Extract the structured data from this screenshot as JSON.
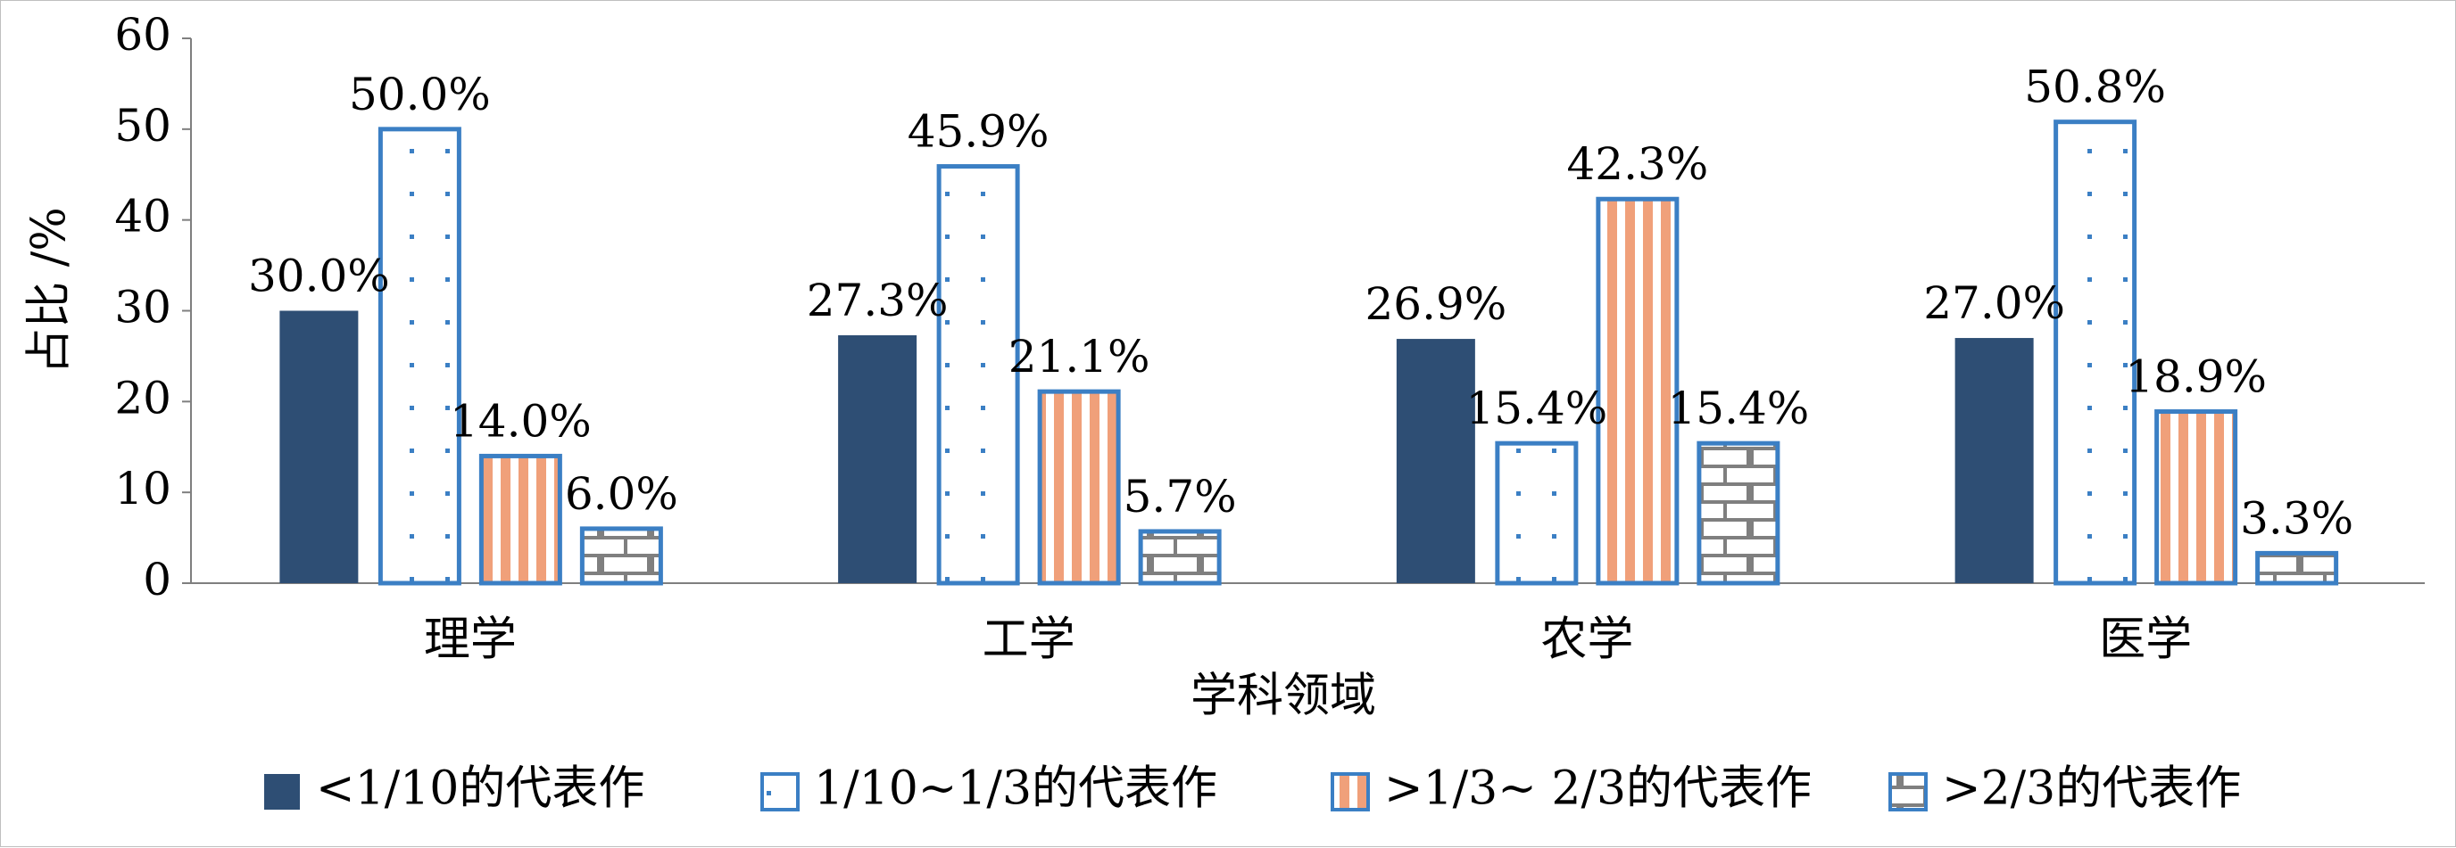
{
  "chart_data": {
    "type": "bar",
    "categories": [
      "理学",
      "工学",
      "农学",
      "医学"
    ],
    "series": [
      {
        "name": "<1/10的代表作",
        "values": [
          30.0,
          27.3,
          26.9,
          27.0
        ],
        "labels": [
          "30.0%",
          "27.3%",
          "26.9%",
          "27.0%"
        ],
        "pattern": "solid",
        "color": "#2e4e74"
      },
      {
        "name": "1/10~1/3的代表作",
        "values": [
          50.0,
          45.9,
          15.4,
          50.8
        ],
        "labels": [
          "50.0%",
          "45.9%",
          "15.4%",
          "50.8%"
        ],
        "pattern": "dots",
        "color": "#3b7fc4"
      },
      {
        "name": ">1/3~ 2/3的代表作",
        "values": [
          14.0,
          21.1,
          42.3,
          18.9
        ],
        "labels": [
          "14.0%",
          "21.1%",
          "42.3%",
          "18.9%"
        ],
        "pattern": "stripes",
        "color": "#f0a07a"
      },
      {
        "name": ">2/3的代表作",
        "values": [
          6.0,
          5.7,
          15.4,
          3.3
        ],
        "labels": [
          "6.0%",
          "5.7%",
          "15.4%",
          "3.3%"
        ],
        "pattern": "bricks",
        "color": "#7f7f7f"
      }
    ],
    "xlabel": "学科领域",
    "ylabel": "占比 /%",
    "ylim": [
      0,
      60
    ],
    "yticks": [
      0,
      10,
      20,
      30,
      40,
      50,
      60
    ],
    "grid": false,
    "legend_position": "bottom"
  }
}
